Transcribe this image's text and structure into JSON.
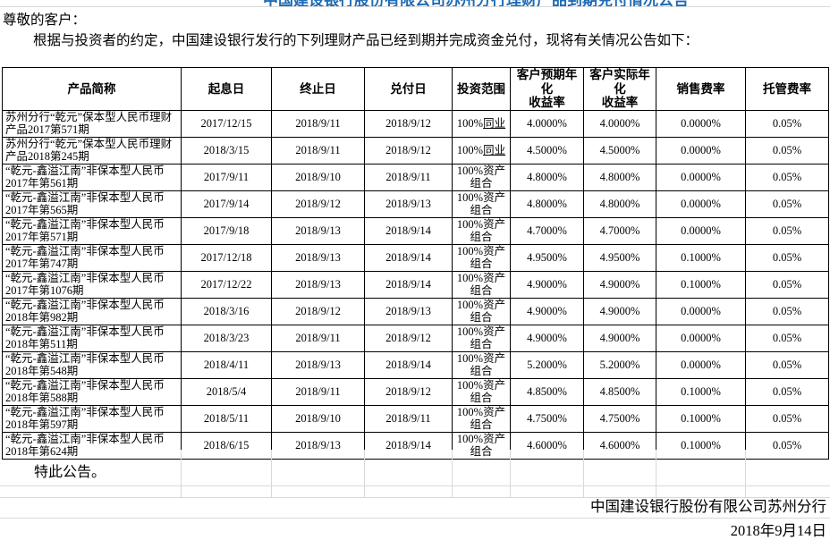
{
  "page": {
    "title_partially_visible": "中国建设银行股份有限公司苏州分行理财产品到期兑付情况公告",
    "greeting": "尊敬的客户：",
    "intro": "根据与投资者的约定，中国建设银行发行的下列理财产品已经到期并完成资金兑付，现将有关情况公告如下：",
    "closing": "特此公告。",
    "footer": {
      "company": "中国建设银行股份有限公司苏州分行",
      "date": "2018年9月14日"
    }
  },
  "colors": {
    "title_blue": "#1f6bb5",
    "table_border": "#000000",
    "faint_gridline": "#d9d9d9"
  },
  "table": {
    "headers": [
      "产品简称",
      "起息日",
      "终止日",
      "兑付日",
      "投资范围",
      "客户预期年化\n收益率",
      "客户实际年化\n收益率",
      "销售费率",
      "托管费率"
    ],
    "rows": [
      {
        "name": "苏州分行“乾元”保本型人民币理财\n产品2017第571期",
        "value_date": "2017/12/15",
        "end_date": "2018/9/11",
        "pay_date": "2018/9/12",
        "scope_prefix": "100%",
        "scope_underline": "同业",
        "expected": "4.0000%",
        "actual": "4.0000%",
        "sales_fee": "0.0000%",
        "custody_fee": "0.05%"
      },
      {
        "name": "苏州分行“乾元”保本型人民币理财\n产品2018第245期",
        "value_date": "2018/3/15",
        "end_date": "2018/9/11",
        "pay_date": "2018/9/12",
        "scope_prefix": "100%",
        "scope_underline": "同业",
        "expected": "4.5000%",
        "actual": "4.5000%",
        "sales_fee": "0.0000%",
        "custody_fee": "0.05%"
      },
      {
        "name": "“乾元-鑫溢江南”非保本型人民币\n2017年第561期",
        "value_date": "2017/9/11",
        "end_date": "2018/9/10",
        "pay_date": "2018/9/11",
        "scope": "100%资产\n组合",
        "expected": "4.8000%",
        "actual": "4.8000%",
        "sales_fee": "0.0000%",
        "custody_fee": "0.05%"
      },
      {
        "name": "“乾元-鑫溢江南”非保本型人民币\n2017年第565期",
        "value_date": "2017/9/14",
        "end_date": "2018/9/12",
        "pay_date": "2018/9/13",
        "scope": "100%资产\n组合",
        "expected": "4.8000%",
        "actual": "4.8000%",
        "sales_fee": "0.0000%",
        "custody_fee": "0.05%"
      },
      {
        "name": "“乾元-鑫溢江南”非保本型人民币\n2017年第571期",
        "value_date": "2017/9/18",
        "end_date": "2018/9/13",
        "pay_date": "2018/9/14",
        "scope": "100%资产\n组合",
        "expected": "4.7000%",
        "actual": "4.7000%",
        "sales_fee": "0.0000%",
        "custody_fee": "0.05%"
      },
      {
        "name": "“乾元-鑫溢江南”非保本型人民币\n2017年第747期",
        "value_date": "2017/12/18",
        "end_date": "2018/9/13",
        "pay_date": "2018/9/14",
        "scope": "100%资产\n组合",
        "expected": "4.9500%",
        "actual": "4.9500%",
        "sales_fee": "0.1000%",
        "custody_fee": "0.05%"
      },
      {
        "name": "“乾元-鑫溢江南”非保本型人民币\n2017年第1076期",
        "value_date": "2017/12/22",
        "end_date": "2018/9/13",
        "pay_date": "2018/9/14",
        "scope": "100%资产\n组合",
        "expected": "4.9000%",
        "actual": "4.9000%",
        "sales_fee": "0.1000%",
        "custody_fee": "0.05%"
      },
      {
        "name": "“乾元-鑫溢江南”非保本型人民币\n2018年第982期",
        "value_date": "2018/3/16",
        "end_date": "2018/9/12",
        "pay_date": "2018/9/13",
        "scope": "100%资产\n组合",
        "expected": "4.9000%",
        "actual": "4.9000%",
        "sales_fee": "0.0000%",
        "custody_fee": "0.05%"
      },
      {
        "name": "“乾元-鑫溢江南”非保本型人民币\n2018年第511期",
        "value_date": "2018/3/23",
        "end_date": "2018/9/11",
        "pay_date": "2018/9/12",
        "scope": "100%资产\n组合",
        "expected": "4.9000%",
        "actual": "4.9000%",
        "sales_fee": "0.0000%",
        "custody_fee": "0.05%"
      },
      {
        "name": "“乾元-鑫溢江南”非保本型人民币\n2018年第548期",
        "value_date": "2018/4/11",
        "end_date": "2018/9/13",
        "pay_date": "2018/9/14",
        "scope": "100%资产\n组合",
        "expected": "5.2000%",
        "actual": "5.2000%",
        "sales_fee": "0.0000%",
        "custody_fee": "0.05%"
      },
      {
        "name": "“乾元-鑫溢江南”非保本型人民币\n2018年第588期",
        "value_date": "2018/5/4",
        "end_date": "2018/9/11",
        "pay_date": "2018/9/12",
        "scope": "100%资产\n组合",
        "expected": "4.8500%",
        "actual": "4.8500%",
        "sales_fee": "0.1000%",
        "custody_fee": "0.05%"
      },
      {
        "name": "“乾元-鑫溢江南”非保本型人民币\n2018年第597期",
        "value_date": "2018/5/11",
        "end_date": "2018/9/10",
        "pay_date": "2018/9/11",
        "scope": "100%资产\n组合",
        "expected": "4.7500%",
        "actual": "4.7500%",
        "sales_fee": "0.1000%",
        "custody_fee": "0.05%"
      },
      {
        "name": "“乾元-鑫溢江南”非保本型人民币\n2018年第624期",
        "value_date": "2018/6/15",
        "end_date": "2018/9/13",
        "pay_date": "2018/9/14",
        "scope": "100%资产\n组合",
        "expected": "4.6000%",
        "actual": "4.6000%",
        "sales_fee": "0.1000%",
        "custody_fee": "0.05%"
      }
    ]
  }
}
